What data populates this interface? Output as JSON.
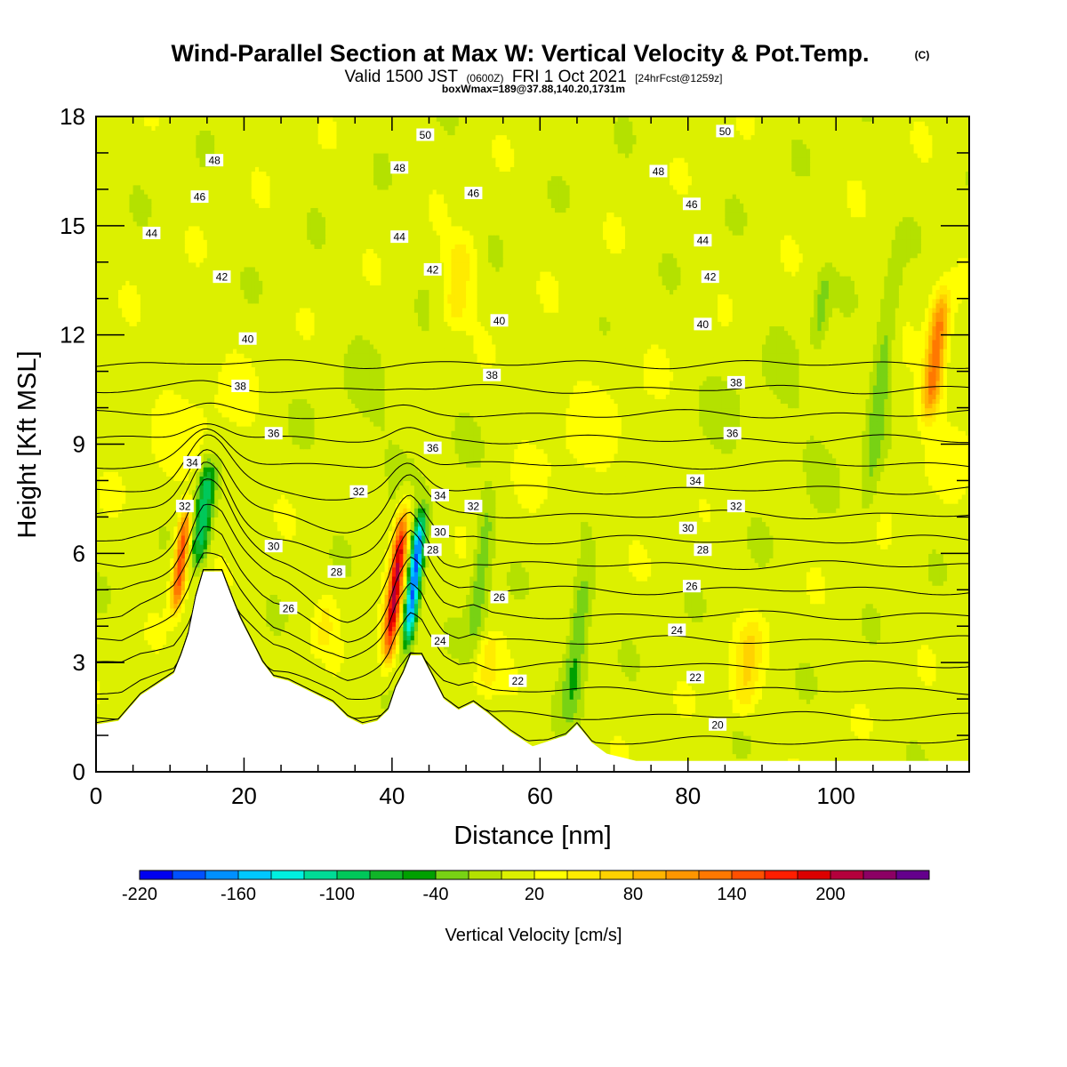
{
  "chart_data": {
    "type": "heatmap",
    "title": "Wind-Parallel Section at Max W: Vertical Velocity & Pot.Temp.",
    "title_mark": "(C)",
    "subtitle_main": "Valid 1500 JST",
    "subtitle_utc": "(0600Z)",
    "subtitle_date": "FRI 1 Oct 2021",
    "subtitle_fcst": "[24hrFcst@1259z]",
    "subtitle_box": "boxWmax=189@37.88,140.20,1731m",
    "xlabel": "Distance [nm]",
    "ylabel": "Height [Kft MSL]",
    "xlim": [
      0,
      118
    ],
    "ylim": [
      0,
      18
    ],
    "x_ticks": [
      {
        "value": 0,
        "label": "0"
      },
      {
        "value": 20,
        "label": "20"
      },
      {
        "value": 40,
        "label": "40"
      },
      {
        "value": 60,
        "label": "60"
      },
      {
        "value": 80,
        "label": "80"
      },
      {
        "value": 100,
        "label": "100"
      }
    ],
    "y_ticks": [
      {
        "value": 0,
        "label": "0"
      },
      {
        "value": 3,
        "label": "3"
      },
      {
        "value": 6,
        "label": "6"
      },
      {
        "value": 9,
        "label": "9"
      },
      {
        "value": 12,
        "label": "12"
      },
      {
        "value": 15,
        "label": "15"
      },
      {
        "value": 18,
        "label": "18"
      }
    ],
    "background_value": 10,
    "updrafts": [
      {
        "x": 11.5,
        "ybot": 4.2,
        "ytop": 7.5,
        "halfwidth": 0.9,
        "amp": 150
      },
      {
        "x": 40.5,
        "ybot": 2.7,
        "ytop": 7.6,
        "halfwidth": 1.0,
        "amp": 189
      },
      {
        "x": 113.5,
        "ybot": 9.5,
        "ytop": 13.5,
        "halfwidth": 1.3,
        "amp": 125
      },
      {
        "x": 49,
        "ybot": 12.0,
        "ytop": 15.0,
        "halfwidth": 2.0,
        "amp": 45
      },
      {
        "x": 88,
        "ybot": 1.3,
        "ytop": 4.4,
        "halfwidth": 1.8,
        "amp": 50
      },
      {
        "x": 53,
        "ybot": 2.0,
        "ytop": 4.0,
        "halfwidth": 1.6,
        "amp": 35
      },
      {
        "x": 31,
        "ybot": 3.2,
        "ytop": 5.0,
        "halfwidth": 1.5,
        "amp": 30
      }
    ],
    "downdrafts": [
      {
        "x": 14.5,
        "ybot": 5.4,
        "ytop": 8.8,
        "halfwidth": 1.2,
        "amp": 110
      },
      {
        "x": 43.0,
        "ybot": 3.2,
        "ytop": 7.4,
        "halfwidth": 0.9,
        "amp": 200
      },
      {
        "x": 65,
        "ybot": 1.0,
        "ytop": 6.0,
        "halfwidth": 1.4,
        "amp": 55
      },
      {
        "x": 52,
        "ybot": 3.0,
        "ytop": 8.0,
        "halfwidth": 1.2,
        "amp": 45
      },
      {
        "x": 106,
        "ybot": 6.5,
        "ytop": 14.5,
        "halfwidth": 1.3,
        "amp": 40
      },
      {
        "x": 98,
        "ybot": 11.5,
        "ytop": 14.0,
        "halfwidth": 1.0,
        "amp": 35
      }
    ],
    "terrain": {
      "x": [
        0,
        3,
        6,
        9,
        10.5,
        11.5,
        12.5,
        13.5,
        14.5,
        17,
        18.5,
        19.5,
        20.5,
        21.5,
        22.5,
        24,
        26,
        28,
        30,
        32,
        34,
        36,
        38,
        39.5,
        40.5,
        41.5,
        42.5,
        44,
        45.5,
        47,
        49,
        51,
        53,
        56,
        59,
        62,
        63.5,
        65,
        67,
        69,
        71,
        73,
        80,
        90,
        100,
        110,
        118
      ],
      "height": [
        1.3,
        1.4,
        2.1,
        2.5,
        2.7,
        3.2,
        3.8,
        4.8,
        5.5,
        5.5,
        4.7,
        4.2,
        3.8,
        3.4,
        3.0,
        2.6,
        2.5,
        2.3,
        2.1,
        1.9,
        1.5,
        1.3,
        1.4,
        1.7,
        2.3,
        2.7,
        3.2,
        3.2,
        2.6,
        2.0,
        1.7,
        1.9,
        1.6,
        1.1,
        0.7,
        0.9,
        1.0,
        1.3,
        0.8,
        0.5,
        0.4,
        0.3,
        0.3,
        0.3,
        0.3,
        0.3,
        0.3
      ]
    },
    "theta_contour_levels": [
      20,
      22,
      24,
      26,
      28,
      30,
      32,
      34,
      36,
      38,
      40,
      42,
      44,
      46,
      48,
      50
    ],
    "isentrope_labels": [
      {
        "x": 44.5,
        "y": 17.5,
        "text": "50"
      },
      {
        "x": 85,
        "y": 17.6,
        "text": "50"
      },
      {
        "x": 16,
        "y": 16.8,
        "text": "48"
      },
      {
        "x": 41,
        "y": 16.6,
        "text": "48"
      },
      {
        "x": 76,
        "y": 16.5,
        "text": "48"
      },
      {
        "x": 14,
        "y": 15.8,
        "text": "46"
      },
      {
        "x": 51,
        "y": 15.9,
        "text": "46"
      },
      {
        "x": 80.5,
        "y": 15.6,
        "text": "46"
      },
      {
        "x": 7.5,
        "y": 14.8,
        "text": "44"
      },
      {
        "x": 41,
        "y": 14.7,
        "text": "44"
      },
      {
        "x": 82,
        "y": 14.6,
        "text": "44"
      },
      {
        "x": 17,
        "y": 13.6,
        "text": "42"
      },
      {
        "x": 45.5,
        "y": 13.8,
        "text": "42"
      },
      {
        "x": 83,
        "y": 13.6,
        "text": "42"
      },
      {
        "x": 20.5,
        "y": 11.9,
        "text": "40"
      },
      {
        "x": 54.5,
        "y": 12.4,
        "text": "40"
      },
      {
        "x": 82,
        "y": 12.3,
        "text": "40"
      },
      {
        "x": 19.5,
        "y": 10.6,
        "text": "38"
      },
      {
        "x": 53.5,
        "y": 10.9,
        "text": "38"
      },
      {
        "x": 86.5,
        "y": 10.7,
        "text": "38"
      },
      {
        "x": 24,
        "y": 9.3,
        "text": "36"
      },
      {
        "x": 45.5,
        "y": 8.9,
        "text": "36"
      },
      {
        "x": 86,
        "y": 9.3,
        "text": "36"
      },
      {
        "x": 13,
        "y": 8.5,
        "text": "34"
      },
      {
        "x": 46.5,
        "y": 7.6,
        "text": "34"
      },
      {
        "x": 81,
        "y": 8.0,
        "text": "34"
      },
      {
        "x": 12,
        "y": 7.3,
        "text": "32"
      },
      {
        "x": 35.5,
        "y": 7.7,
        "text": "32"
      },
      {
        "x": 51,
        "y": 7.3,
        "text": "32"
      },
      {
        "x": 86.5,
        "y": 7.3,
        "text": "32"
      },
      {
        "x": 24,
        "y": 6.2,
        "text": "30"
      },
      {
        "x": 46.5,
        "y": 6.6,
        "text": "30"
      },
      {
        "x": 80,
        "y": 6.7,
        "text": "30"
      },
      {
        "x": 32.5,
        "y": 5.5,
        "text": "28"
      },
      {
        "x": 45.5,
        "y": 6.1,
        "text": "28"
      },
      {
        "x": 82,
        "y": 6.1,
        "text": "28"
      },
      {
        "x": 26,
        "y": 4.5,
        "text": "26"
      },
      {
        "x": 54.5,
        "y": 4.8,
        "text": "26"
      },
      {
        "x": 80.5,
        "y": 5.1,
        "text": "26"
      },
      {
        "x": 46.5,
        "y": 3.6,
        "text": "24"
      },
      {
        "x": 78.5,
        "y": 3.9,
        "text": "24"
      },
      {
        "x": 57,
        "y": 2.5,
        "text": "22"
      },
      {
        "x": 81,
        "y": 2.6,
        "text": "22"
      },
      {
        "x": 84,
        "y": 1.3,
        "text": "20"
      }
    ],
    "colorbar": {
      "label": "Vertical Velocity [cm/s]",
      "min": -220,
      "step": 20,
      "colors": [
        "#0000f0",
        "#0050ff",
        "#0090ff",
        "#00c8ff",
        "#00f0e0",
        "#00dc96",
        "#00c85a",
        "#10b428",
        "#00a000",
        "#78d214",
        "#b4e100",
        "#dcf000",
        "#ffff00",
        "#ffeb00",
        "#ffd200",
        "#ffb400",
        "#ff9600",
        "#ff7800",
        "#ff5000",
        "#ff1e00",
        "#dc0000",
        "#b4003c",
        "#8c0064",
        "#64008c"
      ],
      "tick_labels": [
        {
          "value": -220,
          "label": "-220"
        },
        {
          "value": -160,
          "label": "-160"
        },
        {
          "value": -100,
          "label": "-100"
        },
        {
          "value": -40,
          "label": "-40"
        },
        {
          "value": 20,
          "label": "20"
        },
        {
          "value": 80,
          "label": "80"
        },
        {
          "value": 140,
          "label": "140"
        },
        {
          "value": 200,
          "label": "200"
        }
      ]
    }
  }
}
